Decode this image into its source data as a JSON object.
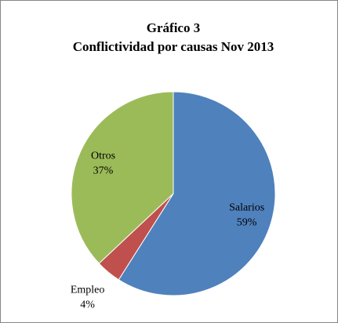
{
  "chart_data": {
    "type": "pie",
    "title": "Gráfico 3",
    "subtitle": "Conflictividad por causas Nov 2013",
    "categories": [
      "Salarios",
      "Empleo",
      "Otros"
    ],
    "values": [
      59,
      4,
      37
    ],
    "value_labels": [
      "59%",
      "4%",
      "37%"
    ],
    "colors": [
      "#4f81bd",
      "#c0504d",
      "#9bbb59"
    ]
  }
}
